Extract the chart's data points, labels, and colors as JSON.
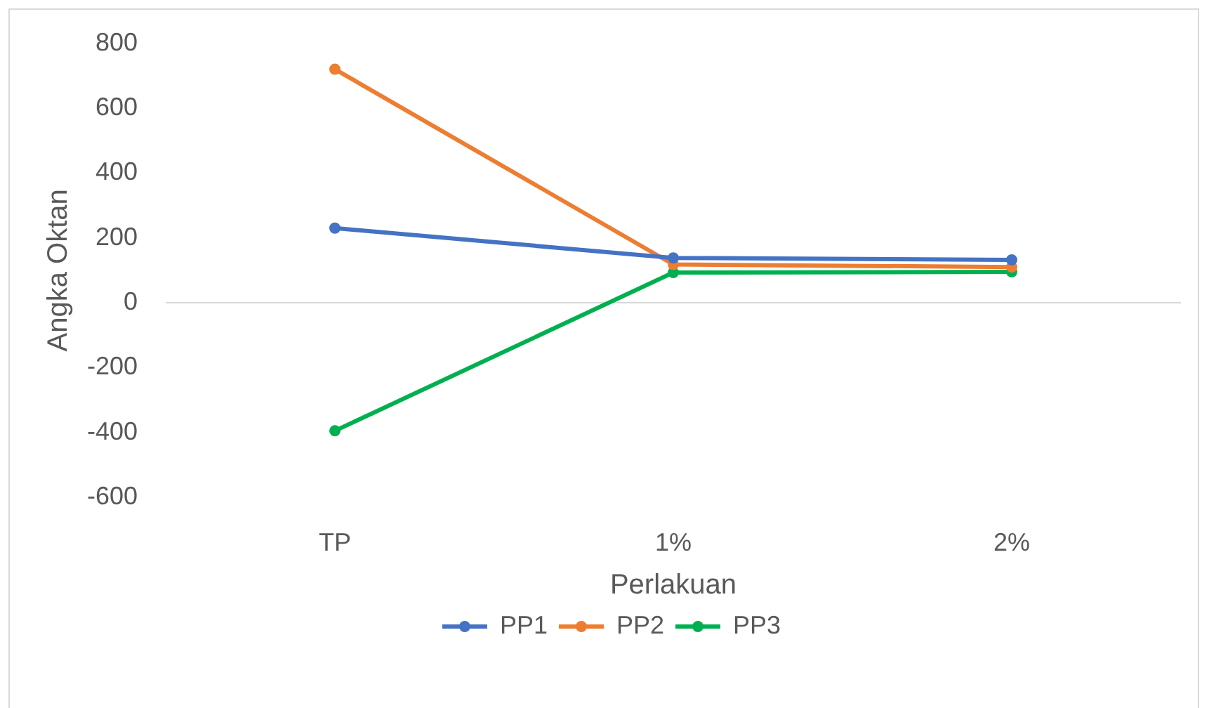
{
  "chart_data": {
    "type": "line",
    "xlabel": "Perlakuan",
    "ylabel": "Angka Oktan",
    "categories": [
      "TP",
      "1%",
      "2%"
    ],
    "series": [
      {
        "name": "PP1",
        "color": "#4472c4",
        "values": [
          230,
          138,
          132
        ]
      },
      {
        "name": "PP2",
        "color": "#ed7d31",
        "values": [
          720,
          118,
          110
        ]
      },
      {
        "name": "PP3",
        "color": "#00b050",
        "values": [
          -395,
          93,
          95
        ]
      }
    ],
    "ylim": [
      -600,
      800
    ],
    "yticks": [
      -600,
      -400,
      -200,
      0,
      200,
      400,
      600,
      800
    ],
    "legend": "bottom",
    "marker": "circle",
    "line_style": "solid"
  }
}
